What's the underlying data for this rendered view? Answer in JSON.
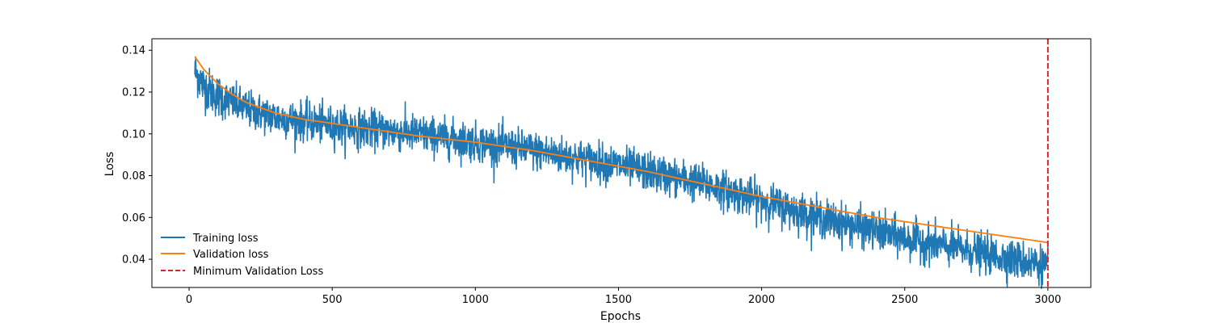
{
  "chart_data": {
    "type": "line",
    "title": "",
    "xlabel": "Epochs",
    "ylabel": "Loss",
    "xlim": [
      -130,
      3150
    ],
    "ylim": [
      0.0265,
      0.1455
    ],
    "x_ticks": [
      0,
      500,
      1000,
      1500,
      2000,
      2500,
      3000
    ],
    "y_ticks": [
      0.04,
      0.06,
      0.08,
      0.1,
      0.12,
      0.14
    ],
    "x_tick_labels": [
      "0",
      "500",
      "1000",
      "1500",
      "2000",
      "2500",
      "3000"
    ],
    "y_tick_labels": [
      "0.04",
      "0.06",
      "0.08",
      "0.10",
      "0.12",
      "0.14"
    ],
    "grid": false,
    "legend_position": "lower-left",
    "series": [
      {
        "name": "Training loss",
        "color": "#1f77b4",
        "x_range": [
          20,
          3000
        ],
        "trend": {
          "x": [
            20,
            30,
            50,
            100,
            200,
            300,
            500,
            800,
            1000,
            1200,
            1500,
            1800,
            2000,
            2200,
            2500,
            2800,
            3000
          ],
          "y": [
            0.13,
            0.128,
            0.123,
            0.118,
            0.112,
            0.108,
            0.104,
            0.1,
            0.096,
            0.092,
            0.085,
            0.076,
            0.068,
            0.06,
            0.05,
            0.042,
            0.037
          ]
        },
        "noise_std": 0.0045
      },
      {
        "name": "Validation loss",
        "color": "#ff7f0e",
        "x": [
          20,
          50,
          100,
          150,
          200,
          300,
          400,
          500,
          600,
          800,
          1000,
          1200,
          1400,
          1600,
          1800,
          2000,
          2200,
          2400,
          2600,
          2800,
          3000
        ],
        "y": [
          0.137,
          0.131,
          0.124,
          0.119,
          0.115,
          0.11,
          0.107,
          0.105,
          0.103,
          0.099,
          0.096,
          0.092,
          0.087,
          0.082,
          0.076,
          0.07,
          0.065,
          0.06,
          0.056,
          0.052,
          0.048
        ]
      },
      {
        "name": "Minimum Validation Loss",
        "color": "#d62728",
        "style": "dashed",
        "vline_x": 3000
      }
    ]
  }
}
